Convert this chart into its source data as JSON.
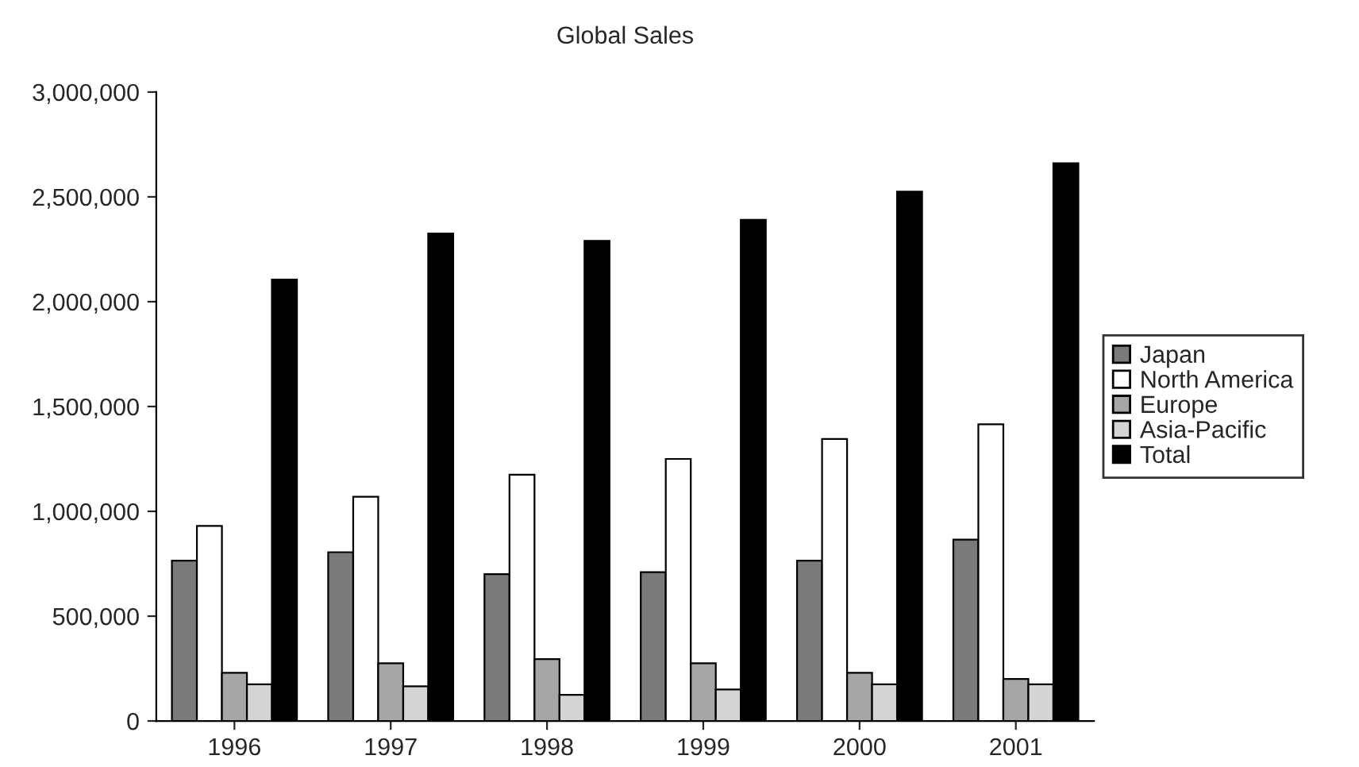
{
  "chart_data": {
    "type": "bar",
    "title": "Global Sales",
    "categories": [
      "1996",
      "1997",
      "1998",
      "1999",
      "2000",
      "2001"
    ],
    "series": [
      {
        "name": "Japan",
        "color": "#7a7a7a",
        "values": [
          765000,
          805000,
          700000,
          710000,
          765000,
          865000
        ]
      },
      {
        "name": "North America",
        "color": "#ffffff",
        "values": [
          930000,
          1070000,
          1175000,
          1250000,
          1345000,
          1415000
        ]
      },
      {
        "name": "Europe",
        "color": "#a6a6a6",
        "values": [
          230000,
          275000,
          295000,
          275000,
          230000,
          200000
        ]
      },
      {
        "name": "Asia-Pacific",
        "color": "#d4d4d4",
        "values": [
          175000,
          165000,
          125000,
          150000,
          175000,
          175000
        ]
      },
      {
        "name": "Total",
        "color": "#000000",
        "values": [
          2105000,
          2325000,
          2290000,
          2390000,
          2525000,
          2660000
        ]
      }
    ],
    "ylim": [
      0,
      3000000
    ],
    "yticks": [
      0,
      {
        "value": 500000,
        "label": "500,000"
      },
      {
        "value": 1000000,
        "label": "1,000,000"
      },
      {
        "value": 1500000,
        "label": "1,500,000"
      },
      {
        "value": 2000000,
        "label": "2,000,000"
      },
      {
        "value": 2500000,
        "label": "2,500,000"
      },
      {
        "value": 3000000,
        "label": "3,000,000"
      }
    ],
    "grid": false,
    "legend": "right"
  }
}
